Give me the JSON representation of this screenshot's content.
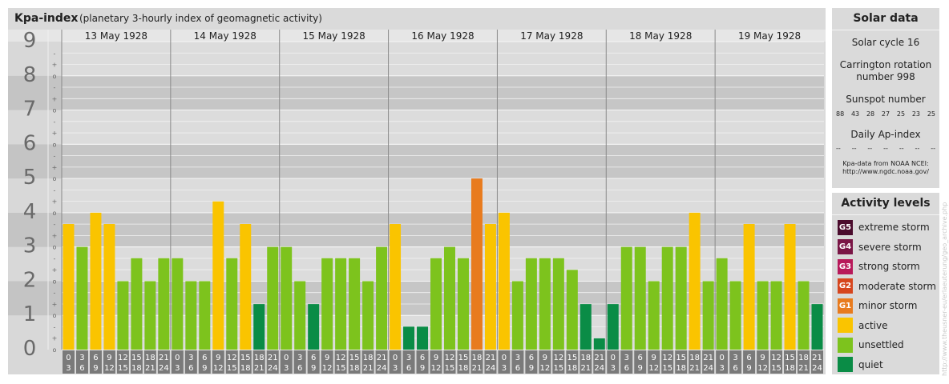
{
  "chart_title": "Kpa-index",
  "chart_subtitle": "(planetary 3-hourly index of geomagnetic activity)",
  "chart_data": {
    "type": "bar",
    "days": [
      "13 May 1928",
      "14 May 1928",
      "15 May 1928",
      "16 May 1928",
      "17 May 1928",
      "18 May 1928",
      "19 May 1928"
    ],
    "interval_labels": [
      [
        "0",
        "3"
      ],
      [
        "3",
        "6"
      ],
      [
        "6",
        "9"
      ],
      [
        "9",
        "12"
      ],
      [
        "12",
        "15"
      ],
      [
        "15",
        "18"
      ],
      [
        "18",
        "21"
      ],
      [
        "21",
        "24"
      ]
    ],
    "values": [
      [
        3.67,
        3.0,
        4.0,
        3.67,
        2.0,
        2.67,
        2.0,
        2.67
      ],
      [
        2.67,
        2.0,
        2.0,
        4.33,
        2.67,
        3.67,
        1.33,
        3.0
      ],
      [
        3.0,
        2.0,
        1.33,
        2.67,
        2.67,
        2.67,
        2.0,
        3.0
      ],
      [
        3.67,
        0.67,
        0.67,
        2.67,
        3.0,
        2.67,
        5.0,
        3.67
      ],
      [
        4.0,
        2.0,
        2.67,
        2.67,
        2.67,
        2.33,
        1.33,
        0.33
      ],
      [
        1.33,
        3.0,
        3.0,
        2.0,
        3.0,
        3.0,
        4.0,
        2.0
      ],
      [
        2.67,
        2.0,
        3.67,
        2.0,
        2.0,
        3.67,
        2.0,
        1.33
      ]
    ],
    "y_ticks": [
      "0",
      "1",
      "2",
      "3",
      "4",
      "5",
      "6",
      "7",
      "8",
      "9"
    ],
    "minor_tick_labels": [
      "o",
      "+",
      "-"
    ],
    "ylim": [
      0,
      9
    ],
    "level_colors": {
      "quiet": "#0a8c46",
      "unsettled": "#7dc31d",
      "active": "#fac400",
      "minor_storm": "#e87b1e"
    },
    "bands": {
      "dark": "#c6c6c6",
      "light": "#dcdcdc",
      "lightest": "#e4e4e4"
    }
  },
  "solar": {
    "title": "Solar data",
    "cycle": "Solar cycle 16",
    "carrington_1": "Carrington rotation",
    "carrington_2": "number 998",
    "sunspot_title": "Sunspot number",
    "sunspot_values": [
      "88",
      "43",
      "28",
      "27",
      "25",
      "23",
      "25"
    ],
    "ap_title": "Daily Ap-index",
    "ap_values": [
      "--",
      "--",
      "--",
      "--",
      "--",
      "--",
      "--"
    ],
    "credit_1": "Kpa-data from NOAA NCEI:",
    "credit_2": "http://www.ngdc.noaa.gov/"
  },
  "activity": {
    "title": "Activity levels",
    "levels": [
      {
        "code": "G5",
        "label": "extreme storm",
        "color": "#4b0c2d"
      },
      {
        "code": "G4",
        "label": "severe storm",
        "color": "#7a1646"
      },
      {
        "code": "G3",
        "label": "strong storm",
        "color": "#b8195a"
      },
      {
        "code": "G2",
        "label": "moderate storm",
        "color": "#d6461e"
      },
      {
        "code": "G1",
        "label": "minor storm",
        "color": "#e87b1e"
      },
      {
        "code": "",
        "label": "active",
        "color": "#fac400"
      },
      {
        "code": "",
        "label": "unsettled",
        "color": "#7dc31d"
      },
      {
        "code": "",
        "label": "quiet",
        "color": "#0a8c46"
      }
    ]
  },
  "watermark": "http://www.theusner-eu/erlaeuterung/geo_archive.php"
}
